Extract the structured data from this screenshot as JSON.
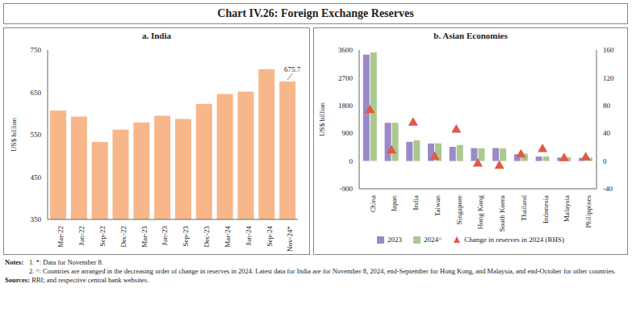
{
  "title": "Chart IV.26: Foreign Exchange Reserves",
  "notes_label": "Notes:",
  "notes": [
    "1. *: Data for November 8.",
    "2. ^: Countries are arranged in the decreasing order of change in reserves in 2024. Latest data for India are for November 8, 2024, end-September for Hong Kong, and Malaysia, and end-October for other countries."
  ],
  "sources_label": "Sources:",
  "sources": "RBI; and respective central bank websites.",
  "chart_data": [
    {
      "type": "bar",
      "title": "a. India",
      "categories": [
        "Mar-22",
        "Jun-22",
        "Sep-22",
        "Dec-22",
        "Mar-23",
        "Jun-23",
        "Sep-23",
        "Dec-23",
        "Mar-24",
        "Jun-24",
        "Sep-24",
        "Nov-24*"
      ],
      "values": [
        607,
        593,
        533,
        562,
        579,
        595,
        587,
        623,
        646,
        652,
        705,
        675.7
      ],
      "color": "#f7b78b",
      "ylabel": "US$ billion",
      "ylim": [
        350,
        750
      ],
      "yticks": [
        350,
        450,
        550,
        650,
        750
      ],
      "annotations": [
        {
          "x": "Nov-24*",
          "y": 675.7,
          "text": "675.7"
        }
      ]
    },
    {
      "type": "bar",
      "title": "b. Asian Economies",
      "categories": [
        "China",
        "Japan",
        "India",
        "Taiwan",
        "Singapore",
        "Hong Kong",
        "South Korea",
        "Thailand",
        "Indonesia",
        "Malaysia",
        "Philippines"
      ],
      "series": [
        {
          "name": "2023",
          "color": "#9b89c9",
          "values": [
            3450,
            1240,
            620,
            570,
            460,
            420,
            420,
            220,
            146,
            113,
            103
          ]
        },
        {
          "name": "2024^",
          "color": "#a9c98e",
          "values": [
            3520,
            1240,
            675,
            575,
            520,
            415,
            412,
            238,
            151,
            117,
            108
          ]
        },
        {
          "name": "Change in reserves in 2024 (RHS)",
          "type": "scatter",
          "marker": "triangle",
          "axis": "y2",
          "color": "#df5a45",
          "values": [
            73,
            15,
            55,
            6,
            45,
            -4,
            -7,
            9,
            17,
            4,
            5
          ]
        }
      ],
      "ylabel": "US$ billion",
      "ylim": [
        -900,
        3600
      ],
      "yticks": [
        -900,
        0,
        900,
        1800,
        2700,
        3600
      ],
      "y2lim": [
        -40,
        160
      ],
      "y2ticks": [
        -40,
        0,
        40,
        80,
        120,
        160
      ],
      "legend": "bottom"
    }
  ]
}
